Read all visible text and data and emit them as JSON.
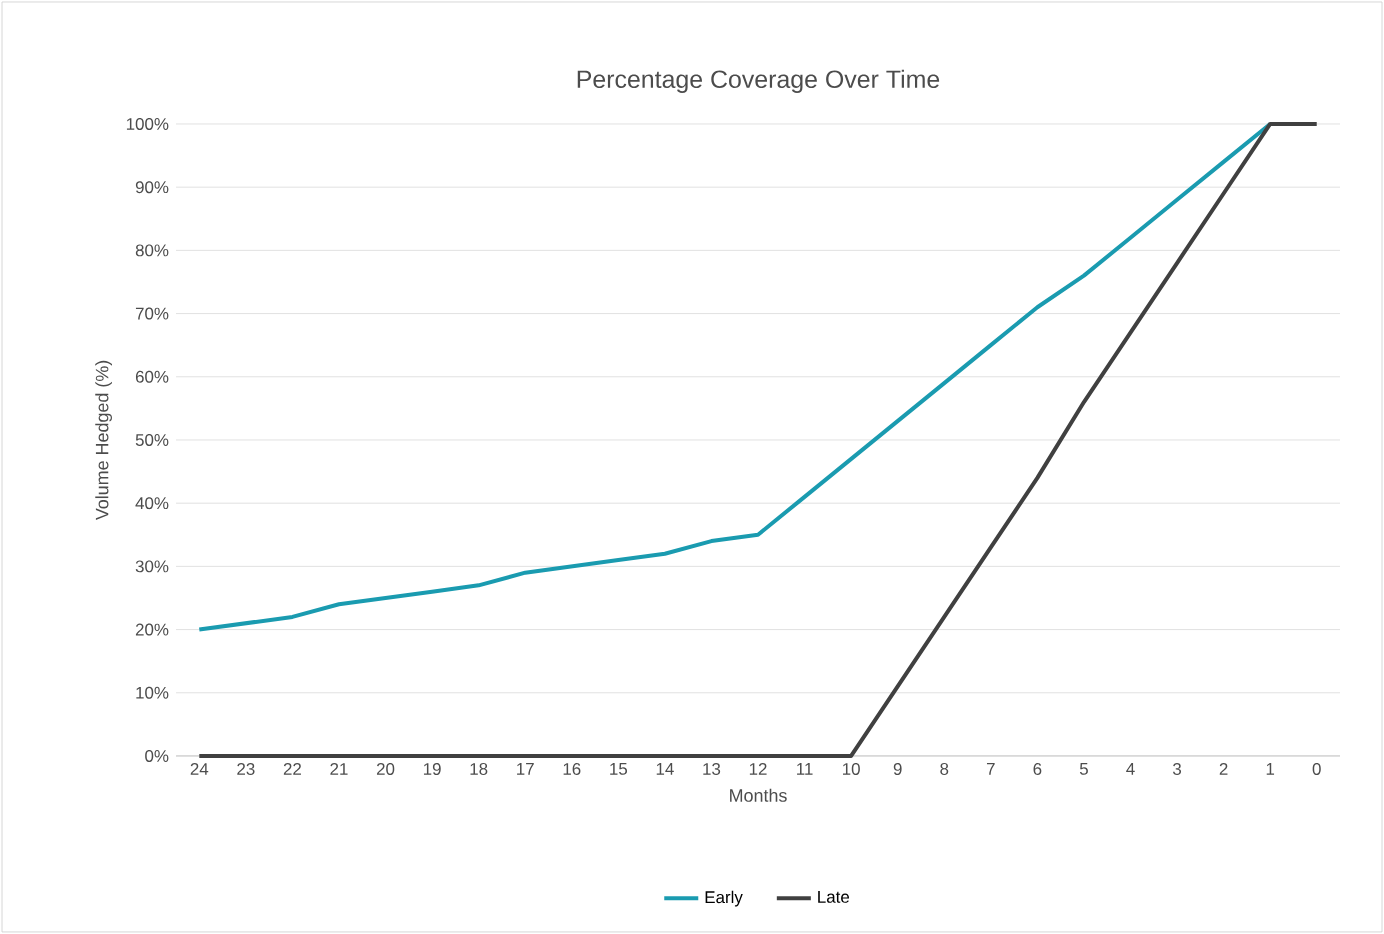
{
  "chart_data": {
    "type": "line",
    "title": "Percentage Coverage Over Time",
    "xlabel": "Months",
    "ylabel": "Volume Hedged (%)",
    "categories": [
      "24",
      "23",
      "22",
      "21",
      "20",
      "19",
      "18",
      "17",
      "16",
      "15",
      "14",
      "13",
      "12",
      "11",
      "10",
      "9",
      "8",
      "7",
      "6",
      "5",
      "4",
      "3",
      "2",
      "1",
      "0"
    ],
    "series": [
      {
        "name": "Early",
        "color": "#1a9bb0",
        "values": [
          20,
          21,
          22,
          24,
          25,
          26,
          27,
          29,
          30,
          31,
          32,
          34,
          35,
          41,
          47,
          53,
          59,
          65,
          71,
          76,
          82,
          88,
          94,
          100,
          null
        ]
      },
      {
        "name": "Late",
        "color": "#404040",
        "values": [
          0,
          0,
          0,
          0,
          0,
          0,
          0,
          0,
          0,
          0,
          0,
          0,
          0,
          0,
          0,
          11,
          22,
          33,
          44,
          56,
          67,
          78,
          89,
          100,
          100
        ]
      }
    ],
    "ylim": [
      0,
      100
    ],
    "yticks": [
      {
        "value": 0,
        "label": "0%"
      },
      {
        "value": 10,
        "label": "10%"
      },
      {
        "value": 20,
        "label": "20%"
      },
      {
        "value": 30,
        "label": "30%"
      },
      {
        "value": 40,
        "label": "40%"
      },
      {
        "value": 50,
        "label": "50%"
      },
      {
        "value": 60,
        "label": "60%"
      },
      {
        "value": 70,
        "label": "70%"
      },
      {
        "value": 80,
        "label": "80%"
      },
      {
        "value": 90,
        "label": "90%"
      },
      {
        "value": 100,
        "label": "100%"
      }
    ],
    "grid": "y",
    "legend": "bottom",
    "marker": "none",
    "line_style": "solid"
  }
}
